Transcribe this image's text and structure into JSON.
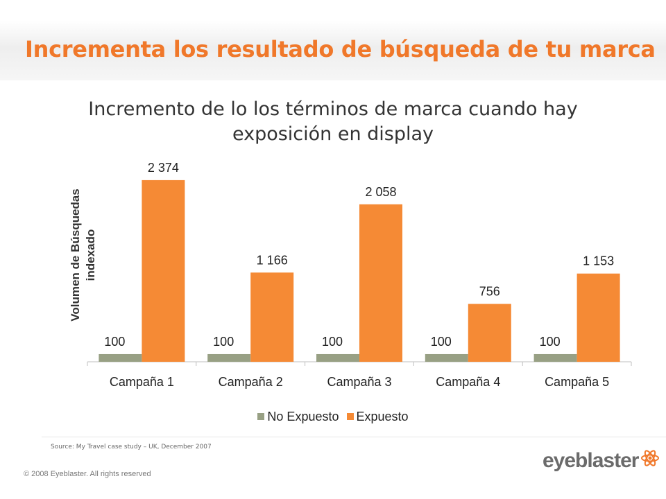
{
  "slide": {
    "title": "Incrementa los resultado de búsqueda de tu marca",
    "source": "Source: My Travel case study – UK, December 2007",
    "copyright": "© 2008 Eyeblaster. All rights reserved",
    "logo_text": "eyeblaster",
    "logo_icon": "atom-icon",
    "accent_color": "#f0782a"
  },
  "chart_data": {
    "type": "bar",
    "title": "Incremento de lo los términos de marca cuando hay exposición en display",
    "title_lines": [
      "Incremento de lo los términos de marca cuando hay",
      "exposición en display"
    ],
    "ylabel_lines": [
      "Volumen de Búsquedas",
      "indexado"
    ],
    "xlabel": "",
    "categories": [
      "Campaña 1",
      "Campaña 2",
      "Campaña 3",
      "Campaña 4",
      "Campaña 5"
    ],
    "series": [
      {
        "name": "No Expuesto",
        "color": "#98a084",
        "values": [
          100,
          100,
          100,
          100,
          100
        ],
        "labels": [
          "100",
          "100",
          "100",
          "100",
          "100"
        ]
      },
      {
        "name": "Expuesto",
        "color": "#f58a35",
        "values": [
          2374,
          1166,
          2058,
          756,
          1153
        ],
        "labels": [
          "2 374",
          "1 166",
          "2 058",
          "756",
          "1 153"
        ]
      }
    ],
    "ylim": [
      0,
      2500
    ],
    "grid": false,
    "legend_position": "bottom"
  }
}
